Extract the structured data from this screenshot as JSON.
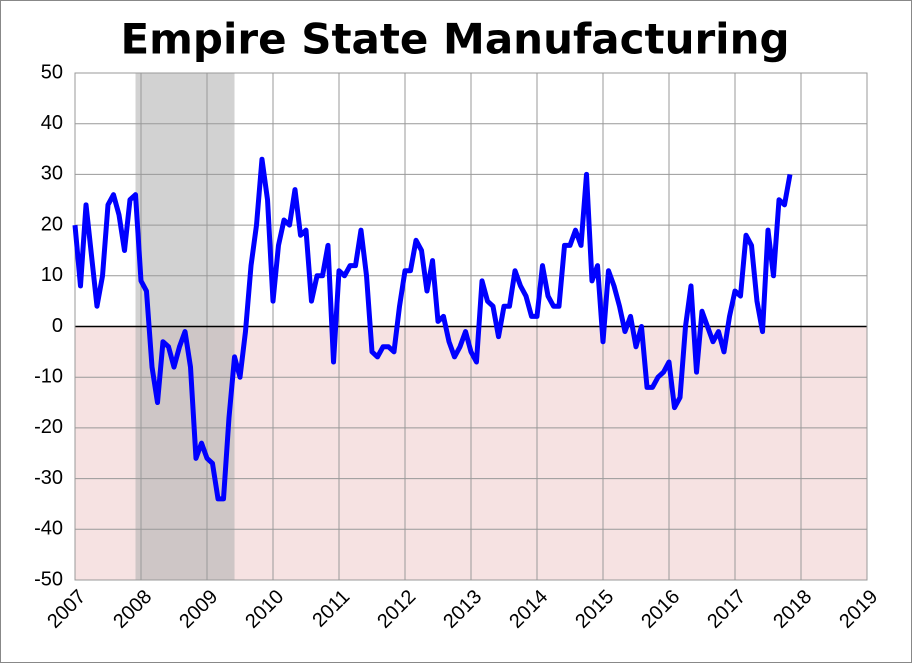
{
  "chart_data": {
    "type": "line",
    "title": "Empire State Manufacturing",
    "x": [
      2007.0,
      2007.083,
      2007.167,
      2007.25,
      2007.333,
      2007.417,
      2007.5,
      2007.583,
      2007.667,
      2007.75,
      2007.833,
      2007.917,
      2008.0,
      2008.083,
      2008.167,
      2008.25,
      2008.333,
      2008.417,
      2008.5,
      2008.583,
      2008.667,
      2008.75,
      2008.833,
      2008.917,
      2009.0,
      2009.083,
      2009.167,
      2009.25,
      2009.333,
      2009.417,
      2009.5,
      2009.583,
      2009.667,
      2009.75,
      2009.833,
      2009.917,
      2010.0,
      2010.083,
      2010.167,
      2010.25,
      2010.333,
      2010.417,
      2010.5,
      2010.583,
      2010.667,
      2010.75,
      2010.833,
      2010.917,
      2011.0,
      2011.083,
      2011.167,
      2011.25,
      2011.333,
      2011.417,
      2011.5,
      2011.583,
      2011.667,
      2011.75,
      2011.833,
      2011.917,
      2012.0,
      2012.083,
      2012.167,
      2012.25,
      2012.333,
      2012.417,
      2012.5,
      2012.583,
      2012.667,
      2012.75,
      2012.833,
      2012.917,
      2013.0,
      2013.083,
      2013.167,
      2013.25,
      2013.333,
      2013.417,
      2013.5,
      2013.583,
      2013.667,
      2013.75,
      2013.833,
      2013.917,
      2014.0,
      2014.083,
      2014.167,
      2014.25,
      2014.333,
      2014.417,
      2014.5,
      2014.583,
      2014.667,
      2014.75,
      2014.833,
      2014.917,
      2015.0,
      2015.083,
      2015.167,
      2015.25,
      2015.333,
      2015.417,
      2015.5,
      2015.583,
      2015.667,
      2015.75,
      2015.833,
      2015.917,
      2016.0,
      2016.083,
      2016.167,
      2016.25,
      2016.333,
      2016.417,
      2016.5,
      2016.583,
      2016.667,
      2016.75,
      2016.833,
      2016.917,
      2017.0,
      2017.083,
      2017.167,
      2017.25,
      2017.333,
      2017.417,
      2017.5,
      2017.583,
      2017.667,
      2017.75,
      2017.833
    ],
    "series": [
      {
        "color": "#0000ff",
        "values": [
          20,
          8,
          24,
          14,
          4,
          10,
          24,
          26,
          22,
          15,
          25,
          26,
          9,
          7,
          -8,
          -15,
          -3,
          -4,
          -8,
          -4,
          -1,
          -8,
          -26,
          -23,
          -26,
          -27,
          -34,
          -34,
          -18,
          -6,
          -10,
          -1,
          12,
          20,
          33,
          25,
          5,
          16,
          21,
          20,
          27,
          18,
          19,
          5,
          10,
          10,
          16,
          -7,
          11,
          10,
          12,
          12,
          19,
          10,
          -5,
          -6,
          -4,
          -4,
          -5,
          4,
          11,
          11,
          17,
          15,
          7,
          13,
          1,
          2,
          -3,
          -6,
          -4,
          -1,
          -5,
          -7,
          9,
          5,
          4,
          -2,
          4,
          4,
          11,
          8,
          6,
          2,
          2,
          12,
          6,
          4,
          4,
          16,
          16,
          19,
          16,
          30,
          9,
          12,
          -3,
          11,
          8,
          4,
          -1,
          2,
          -4,
          0,
          -12,
          -12,
          -10,
          -9,
          -7,
          -16,
          -14,
          0,
          8,
          -9,
          3,
          0,
          -3,
          -1,
          -5,
          2,
          7,
          6,
          18,
          16,
          5,
          -1,
          19,
          10,
          25,
          24,
          30
        ]
      }
    ],
    "xlim": [
      2007,
      2019
    ],
    "xticks": [
      2007,
      2008,
      2009,
      2010,
      2011,
      2012,
      2013,
      2014,
      2015,
      2016,
      2017,
      2018,
      2019
    ],
    "ylim": [
      -50,
      50
    ],
    "yticks": [
      -50,
      -40,
      -30,
      -20,
      -10,
      0,
      10,
      20,
      30,
      40,
      50
    ],
    "grid": true,
    "shaded_regions": [
      {
        "range": [
          2007.917,
          2009.417
        ],
        "color": "#b4b4b4"
      }
    ],
    "negative_fill": "#f6e2e2"
  }
}
